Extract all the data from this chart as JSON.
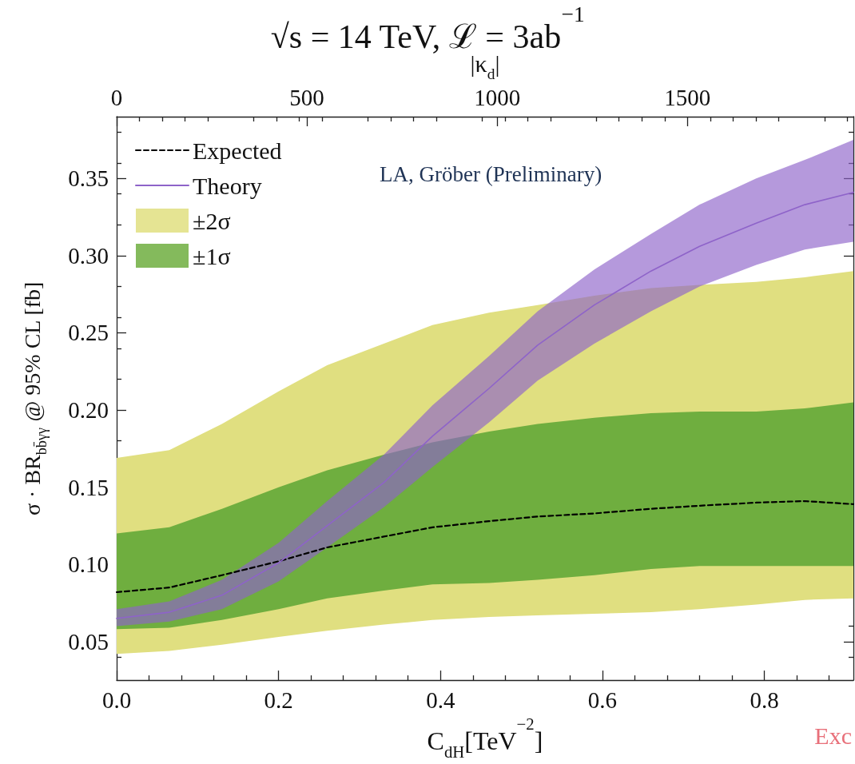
{
  "chart_data": {
    "type": "line",
    "title": "√s = 14 TeV, ℒ = 3ab$^{−1}$",
    "xlabel": "C$_{dH}$[TeV$^{−2}$]",
    "x2label": "|κ$_{d}$|",
    "ylabel": "σ · BR$_{bb̄γγ}$ @ 95% CL [fb]",
    "annotations": [
      "LA, Gröber (Preliminary)",
      "Exc"
    ],
    "x": [
      0,
      0.065,
      0.13,
      0.2,
      0.26,
      0.33,
      0.39,
      0.46,
      0.52,
      0.59,
      0.66,
      0.72,
      0.79,
      0.85,
      0.91
    ],
    "series": [
      {
        "name": "±2σ",
        "type": "area",
        "color": "#e0df80",
        "lower": [
          0.042,
          0.044,
          0.048,
          0.053,
          0.057,
          0.061,
          0.064,
          0.066,
          0.067,
          0.068,
          0.069,
          0.071,
          0.074,
          0.077,
          0.078
        ],
        "values": [
          null,
          null,
          null,
          null,
          null,
          null,
          null,
          null,
          null,
          null,
          null,
          null,
          null,
          null,
          null
        ],
        "upper": [
          0.169,
          0.174,
          0.191,
          0.212,
          0.229,
          0.243,
          0.255,
          0.263,
          0.268,
          0.274,
          0.279,
          0.281,
          0.283,
          0.286,
          0.29
        ]
      },
      {
        "name": "±1σ",
        "type": "area",
        "color": "#6fae3f",
        "lower": [
          0.058,
          0.059,
          0.064,
          0.071,
          0.078,
          0.083,
          0.087,
          0.088,
          0.09,
          0.093,
          0.097,
          0.099,
          0.099,
          0.099,
          0.099
        ],
        "values": [
          null,
          null,
          null,
          null,
          null,
          null,
          null,
          null,
          null,
          null,
          null,
          null,
          null,
          null,
          null
        ],
        "upper": [
          0.12,
          0.124,
          0.136,
          0.15,
          0.161,
          0.171,
          0.179,
          0.186,
          0.191,
          0.195,
          0.198,
          0.199,
          0.199,
          0.201,
          0.205
        ]
      },
      {
        "name": "Expected",
        "type": "line",
        "color": "#000000",
        "line_style": "dashed",
        "values": [
          0.082,
          0.085,
          0.093,
          0.102,
          0.111,
          0.118,
          0.124,
          0.128,
          0.131,
          0.133,
          0.136,
          0.138,
          0.14,
          0.141,
          0.139
        ]
      },
      {
        "name": "Theory",
        "type": "line",
        "color": "#8e63c9",
        "line_style": "solid",
        "values": [
          0.065,
          0.069,
          0.08,
          0.101,
          0.125,
          0.153,
          0.183,
          0.214,
          0.242,
          0.268,
          0.29,
          0.306,
          0.321,
          0.333,
          0.341
        ],
        "lower": [
          0.06,
          0.063,
          0.071,
          0.089,
          0.111,
          0.137,
          0.163,
          0.192,
          0.219,
          0.243,
          0.264,
          0.28,
          0.294,
          0.304,
          0.309
        ],
        "upper": [
          0.071,
          0.076,
          0.09,
          0.114,
          0.141,
          0.171,
          0.203,
          0.235,
          0.264,
          0.291,
          0.314,
          0.333,
          0.35,
          0.362,
          0.375
        ]
      }
    ],
    "xlim": [
      0,
      0.91
    ],
    "xticks": [
      {
        "value": 0,
        "label": "0.0"
      },
      0.2,
      0.4,
      0.6,
      0.8
    ],
    "x2lim": [
      0,
      1936
    ],
    "x2ticks": [
      0,
      500,
      1000,
      1500
    ],
    "ylim": [
      0.025,
      0.39
    ],
    "yticks": [
      0.05,
      {
        "value": 0.1,
        "label": "0.10"
      },
      0.15,
      {
        "value": 0.2,
        "label": "0.20"
      },
      0.25,
      {
        "value": 0.3,
        "label": "0.30"
      },
      0.35
    ],
    "grid": false,
    "legend": "top left",
    "marker": "none"
  }
}
